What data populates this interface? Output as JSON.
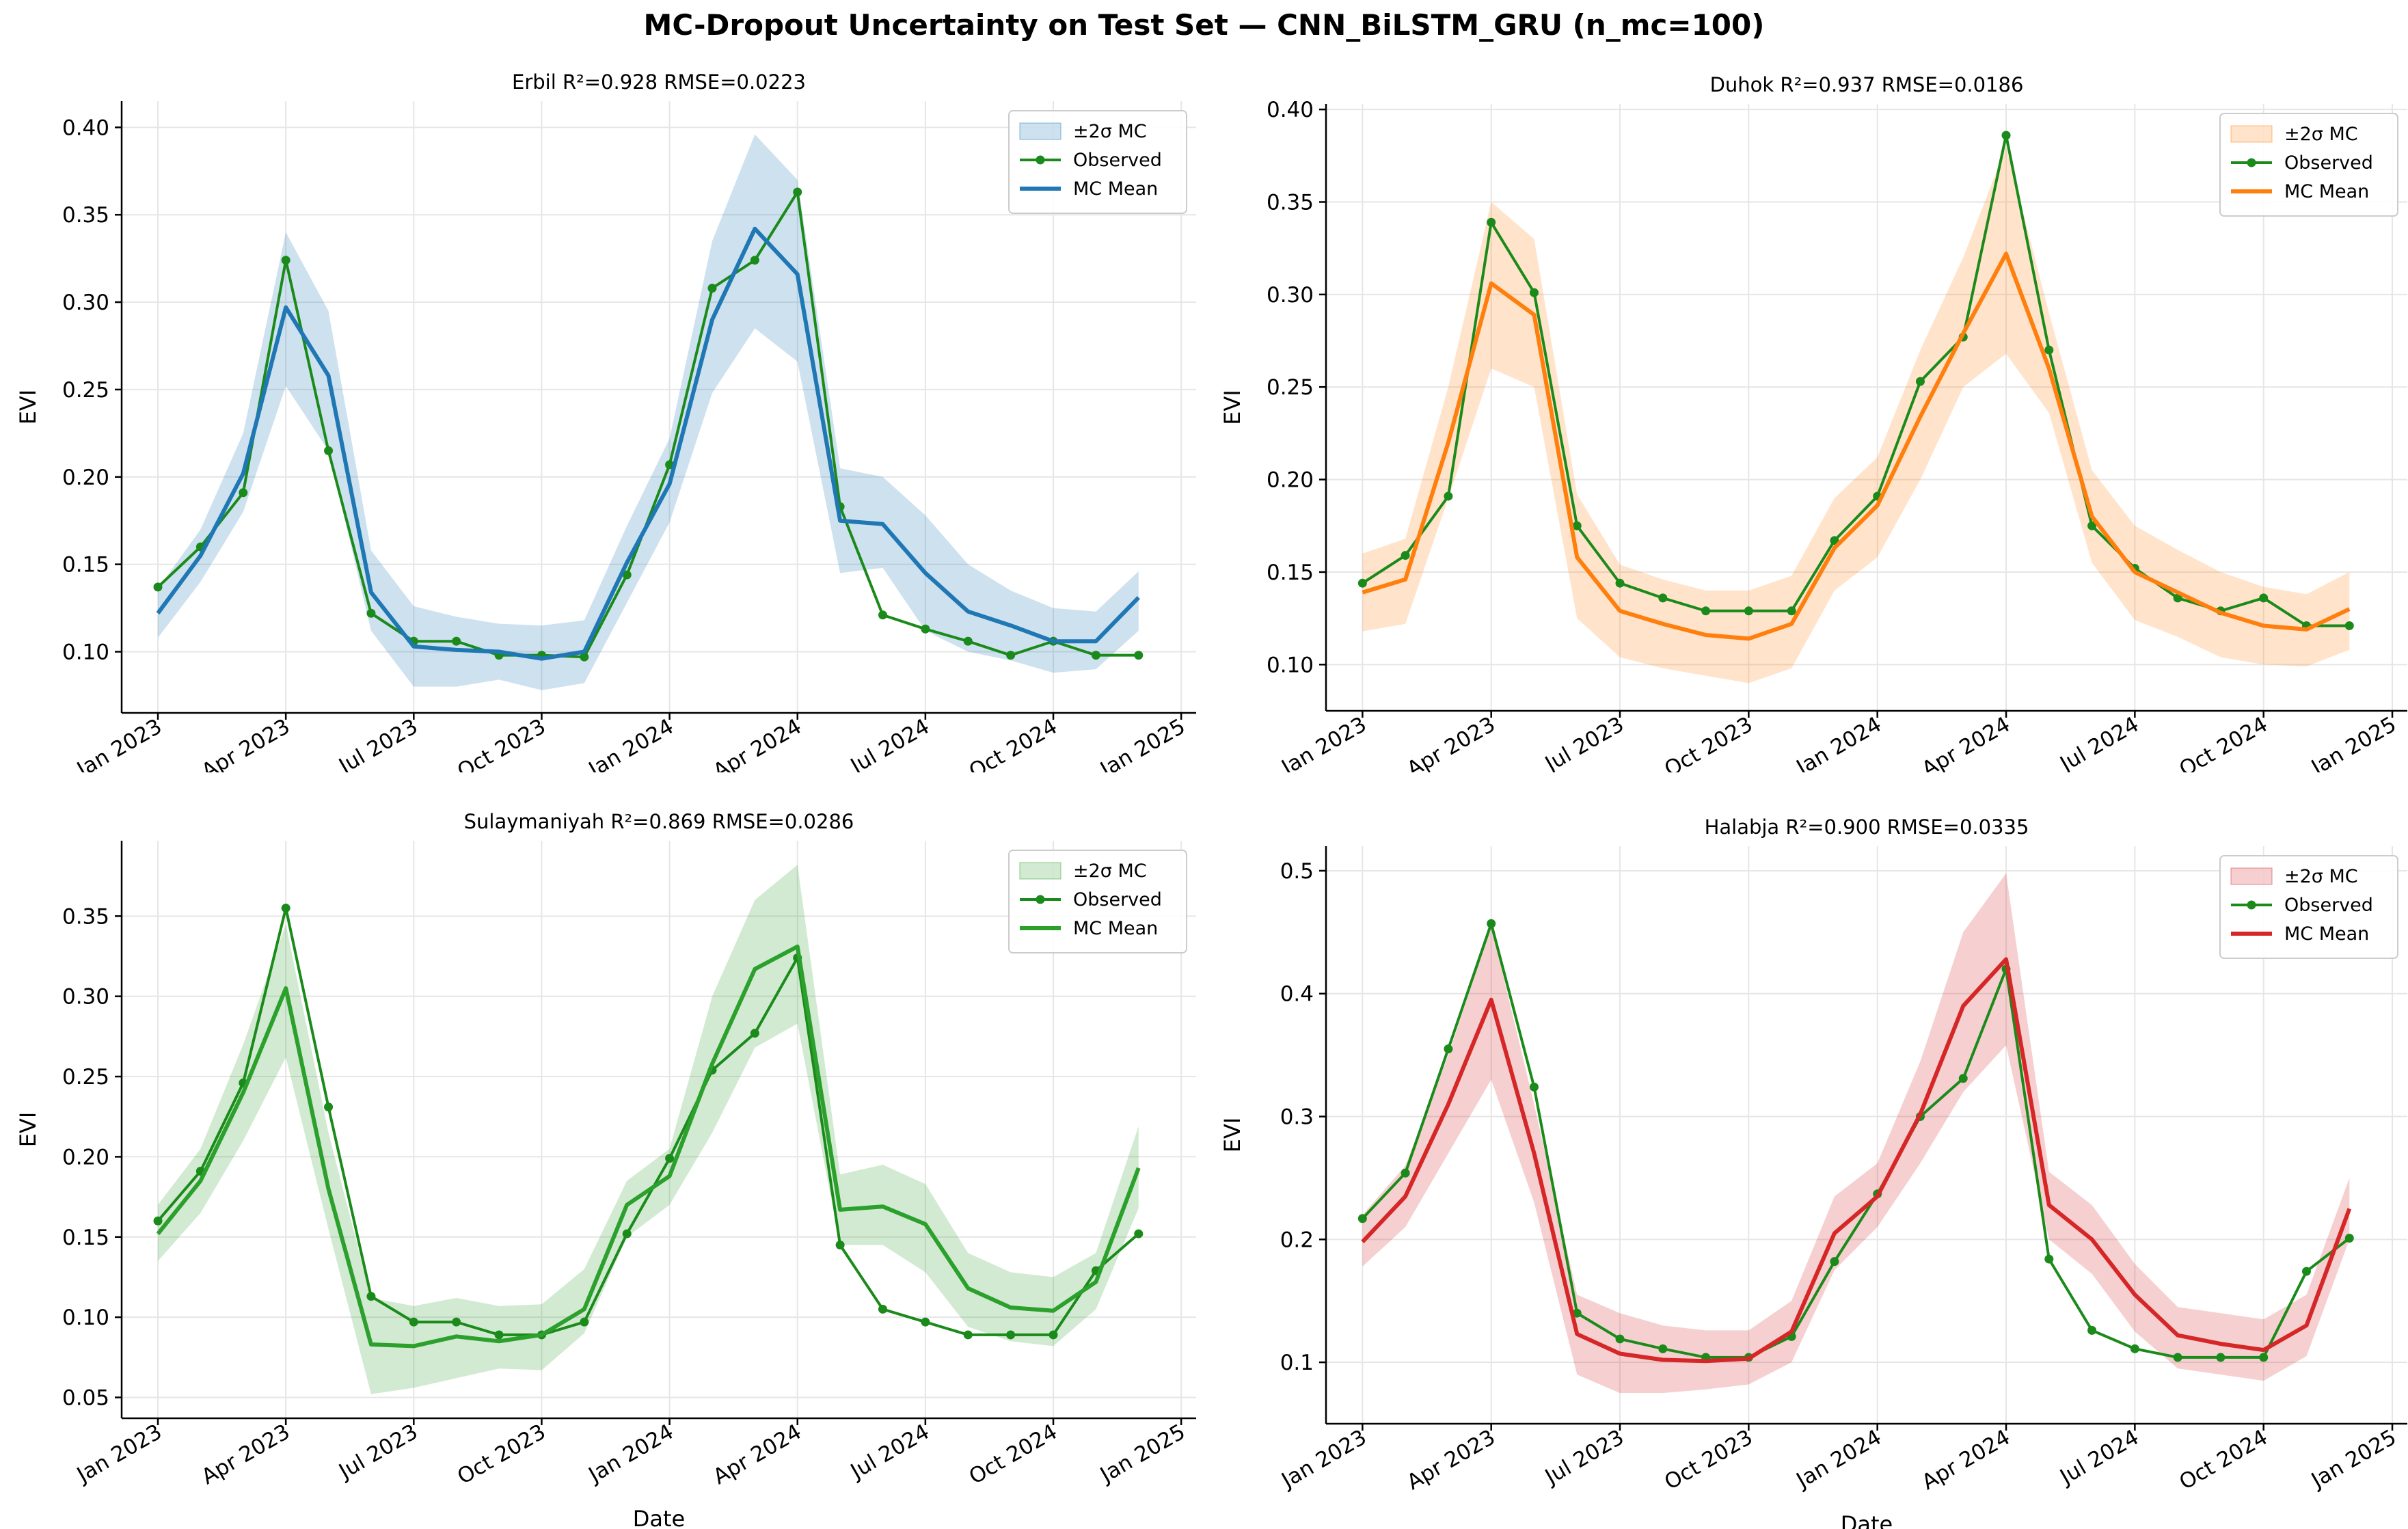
{
  "figure": {
    "title": "MC-Dropout Uncertainty on Test Set — CNN_BiLSTM_GRU (n_mc=100)"
  },
  "chart_data": [
    {
      "type": "line",
      "title": "Erbil   R²=0.928  RMSE=0.0223",
      "xlabel": "Date",
      "ylabel": "EVI",
      "color": "#1f77b4",
      "observed_color": "#1a8a1a",
      "ylim": [
        0.065,
        0.415
      ],
      "yticks": [
        0.1,
        0.15,
        0.2,
        0.25,
        0.3,
        0.35,
        0.4
      ],
      "ytick_labels": [
        "0.10",
        "0.15",
        "0.20",
        "0.25",
        "0.30",
        "0.35",
        "0.40"
      ],
      "xtick_labels": [
        "Jan 2023",
        "Apr 2023",
        "Jul 2023",
        "Oct 2023",
        "Jan 2024",
        "Apr 2024",
        "Jul 2024",
        "Oct 2024",
        "Jan 2025"
      ],
      "x": [
        "2023-01",
        "2023-02",
        "2023-03",
        "2023-04",
        "2023-05",
        "2023-06",
        "2023-07",
        "2023-08",
        "2023-09",
        "2023-10",
        "2023-11",
        "2023-12",
        "2024-01",
        "2024-02",
        "2024-03",
        "2024-04",
        "2024-05",
        "2024-06",
        "2024-07",
        "2024-08",
        "2024-09",
        "2024-10",
        "2024-11",
        "2024-12"
      ],
      "legend": [
        "±2σ MC",
        "Observed",
        "MC Mean"
      ],
      "legend_position": "top-right",
      "grid": true,
      "series": [
        {
          "name": "Observed",
          "values": [
            0.137,
            0.16,
            0.191,
            0.324,
            0.215,
            0.122,
            0.106,
            0.106,
            0.098,
            0.098,
            0.097,
            0.144,
            0.207,
            0.308,
            0.324,
            0.363,
            0.183,
            0.121,
            0.113,
            0.106,
            0.098,
            0.106,
            0.098,
            0.098
          ]
        },
        {
          "name": "MC Mean",
          "values": [
            0.122,
            0.155,
            0.202,
            0.297,
            0.258,
            0.134,
            0.103,
            0.101,
            0.1,
            0.096,
            0.1,
            0.151,
            0.196,
            0.29,
            0.342,
            0.316,
            0.175,
            0.173,
            0.145,
            0.123,
            0.115,
            0.106,
            0.106,
            0.131
          ]
        },
        {
          "name": "±2σ MC",
          "lower": [
            0.108,
            0.14,
            0.18,
            0.252,
            0.215,
            0.112,
            0.08,
            0.08,
            0.084,
            0.078,
            0.082,
            0.128,
            0.174,
            0.248,
            0.285,
            0.266,
            0.145,
            0.148,
            0.112,
            0.1,
            0.095,
            0.088,
            0.09,
            0.112
          ],
          "upper": [
            0.136,
            0.17,
            0.225,
            0.34,
            0.295,
            0.158,
            0.126,
            0.12,
            0.116,
            0.115,
            0.118,
            0.172,
            0.222,
            0.335,
            0.396,
            0.37,
            0.205,
            0.2,
            0.178,
            0.15,
            0.135,
            0.125,
            0.123,
            0.146
          ]
        }
      ]
    },
    {
      "type": "line",
      "title": "Duhok   R²=0.937  RMSE=0.0186",
      "xlabel": "Date",
      "ylabel": "EVI",
      "color": "#ff7f0e",
      "observed_color": "#1a8a1a",
      "ylim": [
        0.075,
        0.403
      ],
      "yticks": [
        0.1,
        0.15,
        0.2,
        0.25,
        0.3,
        0.35,
        0.4
      ],
      "ytick_labels": [
        "0.10",
        "0.15",
        "0.20",
        "0.25",
        "0.30",
        "0.35",
        "0.40"
      ],
      "xtick_labels": [
        "Jan 2023",
        "Apr 2023",
        "Jul 2023",
        "Oct 2023",
        "Jan 2024",
        "Apr 2024",
        "Jul 2024",
        "Oct 2024",
        "Jan 2025"
      ],
      "x": [
        "2023-01",
        "2023-02",
        "2023-03",
        "2023-04",
        "2023-05",
        "2023-06",
        "2023-07",
        "2023-08",
        "2023-09",
        "2023-10",
        "2023-11",
        "2023-12",
        "2024-01",
        "2024-02",
        "2024-03",
        "2024-04",
        "2024-05",
        "2024-06",
        "2024-07",
        "2024-08",
        "2024-09",
        "2024-10",
        "2024-11",
        "2024-12"
      ],
      "legend": [
        "±2σ MC",
        "Observed",
        "MC Mean"
      ],
      "legend_position": "top-right",
      "grid": true,
      "series": [
        {
          "name": "Observed",
          "values": [
            0.144,
            0.159,
            0.191,
            0.339,
            0.301,
            0.175,
            0.144,
            0.136,
            0.129,
            0.129,
            0.129,
            0.167,
            0.191,
            0.253,
            0.277,
            0.386,
            0.27,
            0.175,
            0.152,
            0.136,
            0.129,
            0.136,
            0.121,
            0.121
          ]
        },
        {
          "name": "MC Mean",
          "values": [
            0.139,
            0.146,
            0.22,
            0.306,
            0.289,
            0.158,
            0.129,
            0.122,
            0.116,
            0.114,
            0.122,
            0.163,
            0.186,
            0.234,
            0.279,
            0.322,
            0.26,
            0.18,
            0.15,
            0.139,
            0.128,
            0.121,
            0.119,
            0.13
          ]
        },
        {
          "name": "±2σ MC",
          "lower": [
            0.118,
            0.122,
            0.19,
            0.26,
            0.25,
            0.125,
            0.104,
            0.098,
            0.094,
            0.09,
            0.098,
            0.14,
            0.158,
            0.2,
            0.25,
            0.268,
            0.236,
            0.155,
            0.124,
            0.115,
            0.104,
            0.1,
            0.099,
            0.108
          ],
          "upper": [
            0.16,
            0.168,
            0.25,
            0.35,
            0.33,
            0.192,
            0.154,
            0.146,
            0.14,
            0.14,
            0.148,
            0.19,
            0.212,
            0.27,
            0.32,
            0.38,
            0.29,
            0.205,
            0.175,
            0.162,
            0.15,
            0.142,
            0.138,
            0.15
          ]
        }
      ]
    },
    {
      "type": "line",
      "title": "Sulaymaniyah   R²=0.869  RMSE=0.0286",
      "xlabel": "Date",
      "ylabel": "EVI",
      "color": "#2ca02c",
      "observed_color": "#1a8a1a",
      "ylim": [
        0.037,
        0.397
      ],
      "yticks": [
        0.05,
        0.1,
        0.15,
        0.2,
        0.25,
        0.3,
        0.35
      ],
      "ytick_labels": [
        "0.05",
        "0.10",
        "0.15",
        "0.20",
        "0.25",
        "0.30",
        "0.35"
      ],
      "xtick_labels": [
        "Jan 2023",
        "Apr 2023",
        "Jul 2023",
        "Oct 2023",
        "Jan 2024",
        "Apr 2024",
        "Jul 2024",
        "Oct 2024",
        "Jan 2025"
      ],
      "x": [
        "2023-01",
        "2023-02",
        "2023-03",
        "2023-04",
        "2023-05",
        "2023-06",
        "2023-07",
        "2023-08",
        "2023-09",
        "2023-10",
        "2023-11",
        "2023-12",
        "2024-01",
        "2024-02",
        "2024-03",
        "2024-04",
        "2024-05",
        "2024-06",
        "2024-07",
        "2024-08",
        "2024-09",
        "2024-10",
        "2024-11",
        "2024-12"
      ],
      "legend": [
        "±2σ MC",
        "Observed",
        "MC Mean"
      ],
      "legend_position": "top-right",
      "grid": true,
      "series": [
        {
          "name": "Observed",
          "values": [
            0.16,
            0.191,
            0.246,
            0.355,
            0.231,
            0.113,
            0.097,
            0.097,
            0.089,
            0.089,
            0.097,
            0.152,
            0.199,
            0.254,
            0.277,
            0.324,
            0.145,
            0.105,
            0.097,
            0.089,
            0.089,
            0.089,
            0.129,
            0.152
          ]
        },
        {
          "name": "MC Mean",
          "values": [
            0.152,
            0.185,
            0.24,
            0.305,
            0.18,
            0.083,
            0.082,
            0.088,
            0.085,
            0.089,
            0.105,
            0.17,
            0.188,
            0.258,
            0.317,
            0.331,
            0.167,
            0.169,
            0.158,
            0.118,
            0.106,
            0.104,
            0.122,
            0.193
          ]
        },
        {
          "name": "±2σ MC",
          "lower": [
            0.135,
            0.165,
            0.21,
            0.262,
            0.155,
            0.052,
            0.056,
            0.062,
            0.068,
            0.067,
            0.09,
            0.15,
            0.17,
            0.215,
            0.268,
            0.283,
            0.145,
            0.145,
            0.128,
            0.094,
            0.085,
            0.082,
            0.105,
            0.168
          ],
          "upper": [
            0.17,
            0.205,
            0.27,
            0.345,
            0.215,
            0.112,
            0.107,
            0.112,
            0.107,
            0.108,
            0.13,
            0.185,
            0.205,
            0.3,
            0.36,
            0.382,
            0.189,
            0.195,
            0.183,
            0.14,
            0.128,
            0.125,
            0.14,
            0.219
          ]
        }
      ]
    },
    {
      "type": "line",
      "title": "Halabja   R²=0.900  RMSE=0.0335",
      "xlabel": "Date",
      "ylabel": "EVI",
      "color": "#d62728",
      "observed_color": "#1a8a1a",
      "ylim": [
        0.05,
        0.52
      ],
      "yticks": [
        0.1,
        0.2,
        0.3,
        0.4,
        0.5
      ],
      "ytick_labels": [
        "0.1",
        "0.2",
        "0.3",
        "0.4",
        "0.5"
      ],
      "xtick_labels": [
        "Jan 2023",
        "Apr 2023",
        "Jul 2023",
        "Oct 2023",
        "Jan 2024",
        "Apr 2024",
        "Jul 2024",
        "Oct 2024",
        "Jan 2025"
      ],
      "x": [
        "2023-01",
        "2023-02",
        "2023-03",
        "2023-04",
        "2023-05",
        "2023-06",
        "2023-07",
        "2023-08",
        "2023-09",
        "2023-10",
        "2023-11",
        "2023-12",
        "2024-01",
        "2024-02",
        "2024-03",
        "2024-04",
        "2024-05",
        "2024-06",
        "2024-07",
        "2024-08",
        "2024-09",
        "2024-10",
        "2024-11",
        "2024-12"
      ],
      "legend": [
        "±2σ MC",
        "Observed",
        "MC Mean"
      ],
      "legend_position": "top-right",
      "grid": true,
      "series": [
        {
          "name": "Observed",
          "values": [
            0.217,
            0.254,
            0.355,
            0.457,
            0.324,
            0.14,
            0.119,
            0.111,
            0.104,
            0.104,
            0.121,
            0.182,
            0.237,
            0.3,
            0.331,
            0.42,
            0.184,
            0.126,
            0.111,
            0.104,
            0.104,
            0.104,
            0.174,
            0.201
          ]
        },
        {
          "name": "MC Mean",
          "values": [
            0.198,
            0.235,
            0.31,
            0.395,
            0.27,
            0.123,
            0.107,
            0.102,
            0.101,
            0.103,
            0.125,
            0.205,
            0.235,
            0.302,
            0.39,
            0.428,
            0.228,
            0.2,
            0.155,
            0.122,
            0.115,
            0.11,
            0.13,
            0.225
          ]
        },
        {
          "name": "±2σ MC",
          "lower": [
            0.178,
            0.21,
            0.27,
            0.33,
            0.23,
            0.09,
            0.075,
            0.075,
            0.078,
            0.082,
            0.1,
            0.175,
            0.21,
            0.262,
            0.32,
            0.358,
            0.2,
            0.172,
            0.125,
            0.095,
            0.09,
            0.085,
            0.105,
            0.2
          ],
          "upper": [
            0.22,
            0.26,
            0.35,
            0.455,
            0.31,
            0.155,
            0.14,
            0.13,
            0.126,
            0.126,
            0.15,
            0.235,
            0.262,
            0.345,
            0.45,
            0.498,
            0.255,
            0.228,
            0.18,
            0.145,
            0.14,
            0.135,
            0.155,
            0.25
          ]
        }
      ]
    }
  ]
}
